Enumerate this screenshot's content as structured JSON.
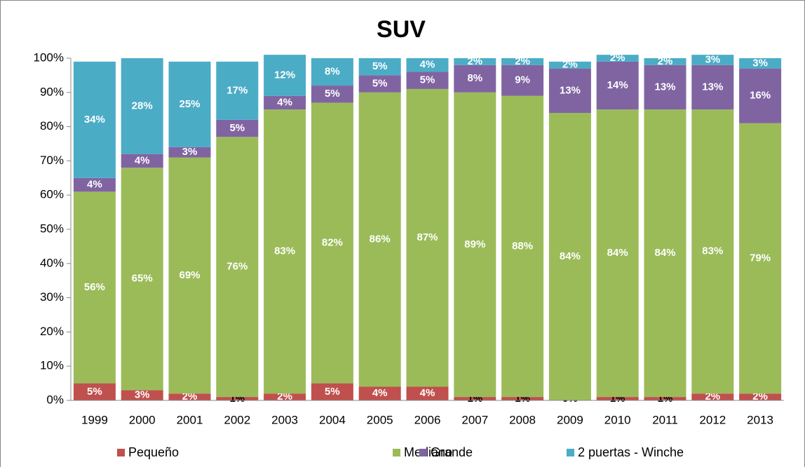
{
  "chart_data": {
    "type": "stacked_bar",
    "title": "SUV",
    "categories": [
      "1999",
      "2000",
      "2001",
      "2002",
      "2003",
      "2004",
      "2005",
      "2006",
      "2007",
      "2008",
      "2009",
      "2010",
      "2011",
      "2012",
      "2013"
    ],
    "series": [
      {
        "name": "Pequeño",
        "color": "#c0504d",
        "values": [
          5,
          3,
          2,
          1,
          2,
          5,
          4,
          4,
          1,
          1,
          0,
          1,
          1,
          2,
          2
        ],
        "value_labels": [
          "5%",
          "3%",
          "2%",
          "1%",
          "2%",
          "5%",
          "4%",
          "4%",
          "1%",
          "1%",
          "0%",
          "1%",
          "1%",
          "2%",
          "2%"
        ]
      },
      {
        "name": "Mediano",
        "color": "#9bbb59",
        "values": [
          56,
          65,
          69,
          76,
          83,
          82,
          86,
          87,
          89,
          88,
          84,
          84,
          84,
          83,
          79
        ],
        "value_labels": [
          "56%",
          "65%",
          "69%",
          "76%",
          "83%",
          "82%",
          "86%",
          "87%",
          "89%",
          "88%",
          "84%",
          "84%",
          "84%",
          "83%",
          "79%"
        ]
      },
      {
        "name": "Grande",
        "color": "#8064a2",
        "values": [
          4,
          4,
          3,
          5,
          4,
          5,
          5,
          5,
          8,
          9,
          13,
          14,
          13,
          13,
          16
        ],
        "value_labels": [
          "4%",
          "4%",
          "3%",
          "5%",
          "4%",
          "5%",
          "5%",
          "5%",
          "8%",
          "9%",
          "13%",
          "14%",
          "13%",
          "13%",
          "16%"
        ]
      },
      {
        "name": "2 puertas - Winche",
        "color": "#4bacc6",
        "values": [
          34,
          28,
          25,
          17,
          12,
          8,
          5,
          4,
          2,
          2,
          2,
          2,
          2,
          3,
          3
        ],
        "value_labels": [
          "34%",
          "28%",
          "25%",
          "17%",
          "12%",
          "8%",
          "5%",
          "4%",
          "2%",
          "2%",
          "2%",
          "2%",
          "2%",
          "3%",
          "3%"
        ]
      }
    ],
    "ylim": [
      0,
      100
    ],
    "yticks": [
      {
        "value": 0,
        "label": "0%"
      },
      {
        "value": 10,
        "label": "10%"
      },
      {
        "value": 20,
        "label": "20%"
      },
      {
        "value": 30,
        "label": "30%"
      },
      {
        "value": 40,
        "label": "40%"
      },
      {
        "value": 50,
        "label": "50%"
      },
      {
        "value": 60,
        "label": "60%"
      },
      {
        "value": 70,
        "label": "70%"
      },
      {
        "value": 80,
        "label": "80%"
      },
      {
        "value": 90,
        "label": "90%"
      },
      {
        "value": 100,
        "label": "100%"
      }
    ],
    "legend": "bottom"
  }
}
